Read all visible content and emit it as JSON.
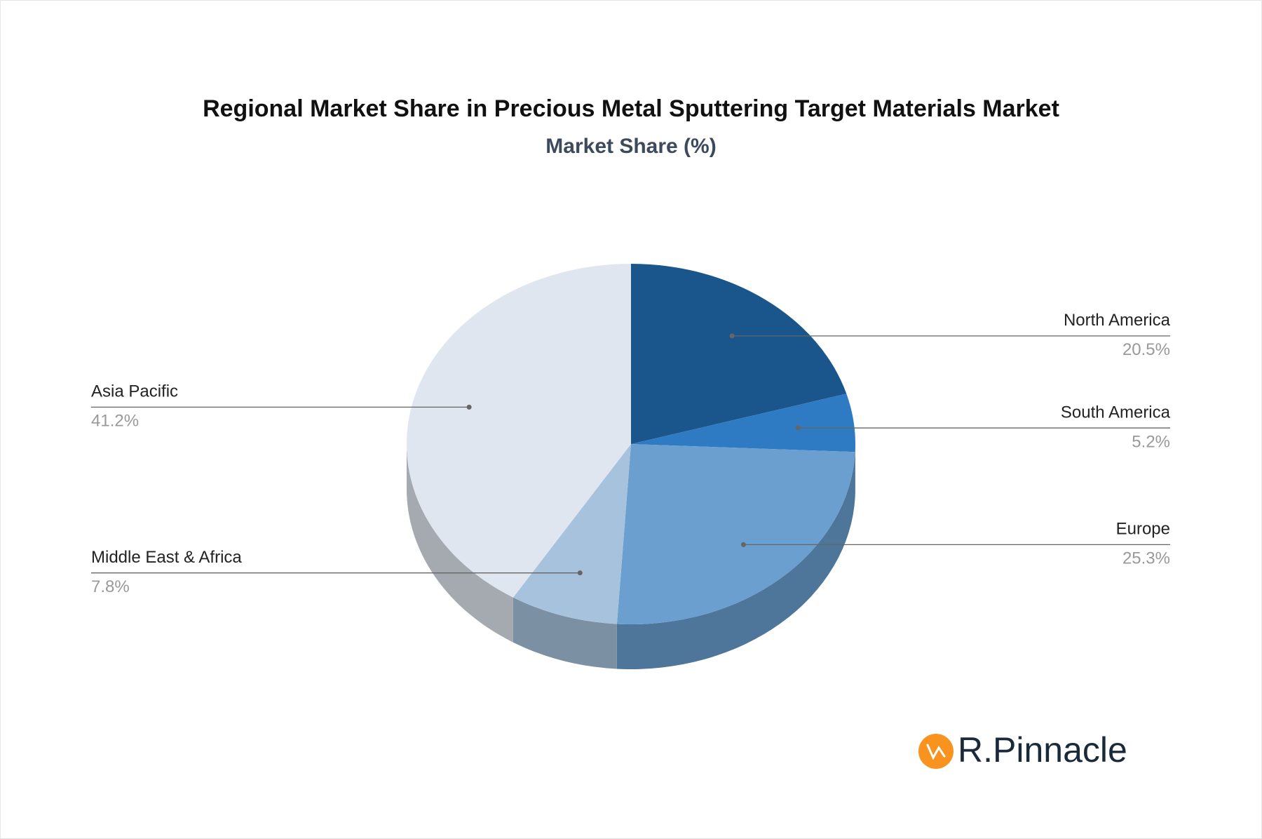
{
  "chart_data": {
    "type": "pie3d",
    "title": "Regional Market Share in Precious Metal Sputtering Target Materials Market",
    "subtitle": "Market Share (%)",
    "categories": [
      "North America",
      "South America",
      "Europe",
      "Middle East & Africa",
      "Asia Pacific"
    ],
    "values": [
      20.5,
      5.2,
      25.3,
      7.8,
      41.2
    ],
    "value_labels": [
      "20.5%",
      "5.2%",
      "25.3%",
      "7.8%",
      "41.2%"
    ],
    "colors": [
      "#1a568c",
      "#2e7bc4",
      "#6a9fd0",
      "#a7c2dc",
      "#dfe6ef"
    ]
  },
  "logo": {
    "text": "R.Pinnacle"
  }
}
